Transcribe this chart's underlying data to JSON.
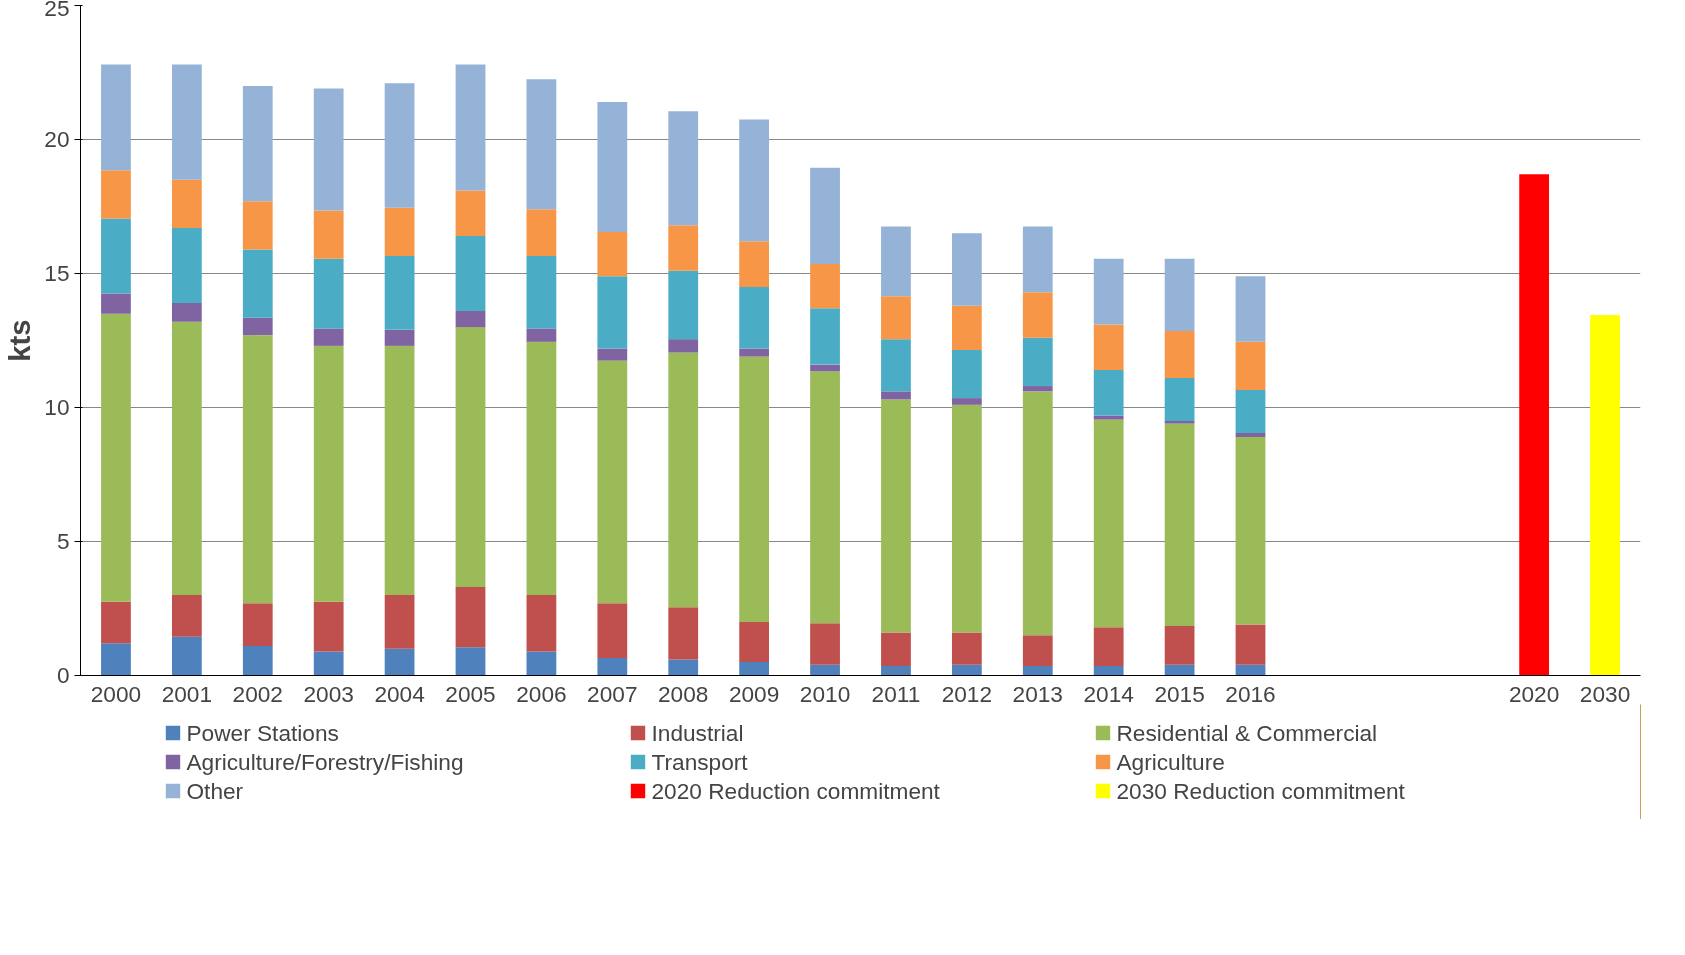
{
  "chart_data": {
    "type": "bar",
    "stacked": true,
    "ylabel": "kts",
    "ylim": [
      0,
      25
    ],
    "yticks": [
      0,
      5,
      10,
      15,
      20,
      25
    ],
    "grid": "y",
    "legend": "bottom",
    "categories": [
      "2000",
      "2001",
      "2002",
      "2003",
      "2004",
      "2005",
      "2006",
      "2007",
      "2008",
      "2009",
      "2010",
      "2011",
      "2012",
      "2013",
      "2014",
      "2015",
      "2016",
      null,
      null,
      null,
      "2020",
      "2030"
    ],
    "series": [
      {
        "name": "Power Stations",
        "color": "#4f81bd",
        "values": [
          1.2,
          1.45,
          1.1,
          0.9,
          1.0,
          1.05,
          0.9,
          0.65,
          0.6,
          0.5,
          0.4,
          0.35,
          0.4,
          0.35,
          0.35,
          0.4,
          0.4,
          null,
          null,
          null,
          null,
          null
        ]
      },
      {
        "name": "Industrial",
        "color": "#c0504d",
        "values": [
          1.55,
          1.55,
          1.6,
          1.85,
          2.0,
          2.25,
          2.1,
          2.05,
          1.95,
          1.5,
          1.55,
          1.25,
          1.2,
          1.15,
          1.45,
          1.45,
          1.5,
          null,
          null,
          null,
          null,
          null
        ]
      },
      {
        "name": "Residential & Commercial",
        "color": "#9bbb59",
        "values": [
          10.75,
          10.2,
          10.0,
          9.55,
          9.3,
          9.7,
          9.45,
          9.05,
          9.5,
          9.9,
          9.4,
          8.7,
          8.5,
          9.1,
          7.75,
          7.55,
          7.0,
          null,
          null,
          null,
          null,
          null
        ]
      },
      {
        "name": "Agriculture/Forestry/Fishing",
        "color": "#8064a2",
        "values": [
          0.75,
          0.7,
          0.65,
          0.65,
          0.6,
          0.6,
          0.5,
          0.45,
          0.5,
          0.3,
          0.25,
          0.3,
          0.25,
          0.2,
          0.15,
          0.1,
          0.15,
          null,
          null,
          null,
          null,
          null
        ]
      },
      {
        "name": "Transport",
        "color": "#4bacc6",
        "values": [
          2.8,
          2.8,
          2.55,
          2.6,
          2.75,
          2.8,
          2.7,
          2.7,
          2.55,
          2.3,
          2.1,
          1.95,
          1.8,
          1.8,
          1.7,
          1.6,
          1.6,
          null,
          null,
          null,
          null,
          null
        ]
      },
      {
        "name": "Agriculture",
        "color": "#f79646",
        "values": [
          1.8,
          1.8,
          1.8,
          1.8,
          1.8,
          1.7,
          1.75,
          1.65,
          1.7,
          1.7,
          1.65,
          1.6,
          1.65,
          1.7,
          1.7,
          1.75,
          1.8,
          null,
          null,
          null,
          null,
          null
        ]
      },
      {
        "name": "Other",
        "color": "#95b3d7",
        "values": [
          3.95,
          4.3,
          4.3,
          4.55,
          4.65,
          4.7,
          4.85,
          4.85,
          4.25,
          4.55,
          3.6,
          2.6,
          2.7,
          2.45,
          2.45,
          2.7,
          2.45,
          null,
          null,
          null,
          null,
          null
        ]
      },
      {
        "name": "2020 Reduction commitment",
        "color": "#ff0000",
        "values": [
          null,
          null,
          null,
          null,
          null,
          null,
          null,
          null,
          null,
          null,
          null,
          null,
          null,
          null,
          null,
          null,
          null,
          null,
          null,
          null,
          18.7,
          null
        ]
      },
      {
        "name": "2030 Reduction commitment",
        "color": "#ffff00",
        "values": [
          null,
          null,
          null,
          null,
          null,
          null,
          null,
          null,
          null,
          null,
          null,
          null,
          null,
          null,
          null,
          null,
          null,
          null,
          null,
          null,
          null,
          13.45
        ]
      }
    ]
  }
}
